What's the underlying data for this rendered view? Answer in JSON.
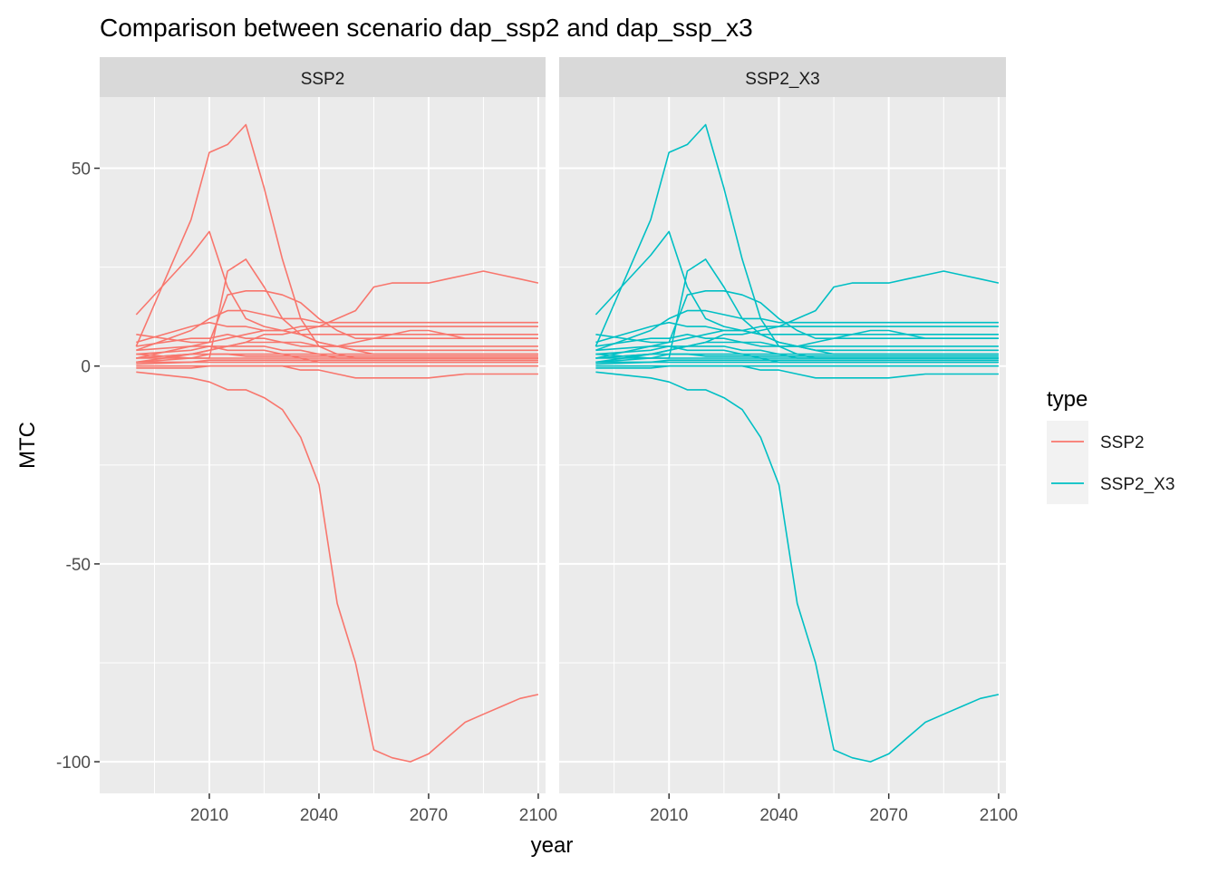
{
  "chart_data": {
    "type": "line",
    "title": "Comparison between scenario dap_ssp2 and dap_ssp_x3",
    "xlabel": "year",
    "ylabel": "MTC",
    "xlim": [
      1980,
      2102
    ],
    "ylim": [
      -108,
      68
    ],
    "x_ticks": [
      2010,
      2040,
      2070,
      2100
    ],
    "x_tick_labels": [
      "2010",
      "2040",
      "2070",
      "2100"
    ],
    "y_ticks": [
      -100,
      -50,
      0,
      50
    ],
    "y_tick_labels": [
      "-100",
      "-50",
      "0",
      "50"
    ],
    "grid": true,
    "legend": {
      "title": "type",
      "position": "right",
      "entries": [
        {
          "label": "SSP2",
          "color": "#F8766D"
        },
        {
          "label": "SSP2_X3",
          "color": "#00BFC4"
        }
      ]
    },
    "facets": [
      {
        "label": "SSP2",
        "color": "#F8766D"
      },
      {
        "label": "SSP2_X3",
        "color": "#00BFC4"
      }
    ],
    "x": [
      1990,
      2005,
      2010,
      2015,
      2020,
      2025,
      2030,
      2035,
      2040,
      2045,
      2050,
      2055,
      2060,
      2065,
      2070,
      2075,
      2080,
      2085,
      2090,
      2095,
      2100
    ],
    "series": [
      {
        "values": [
          -1.5,
          -3,
          -4,
          -6,
          -6,
          -8,
          -11,
          -18,
          -30,
          -60,
          -75,
          -97,
          -99,
          -100,
          -98,
          -94,
          -90,
          -88,
          -86,
          -84,
          -83
        ]
      },
      {
        "values": [
          5,
          37,
          54,
          56,
          61,
          45,
          27,
          12,
          5,
          3,
          2,
          2,
          2,
          2,
          2,
          2,
          2,
          2,
          2,
          2,
          2
        ]
      },
      {
        "values": [
          13,
          28,
          34,
          20,
          12,
          10,
          9,
          8,
          6,
          5,
          4,
          4,
          4,
          4,
          4,
          4,
          4,
          4,
          4,
          4,
          4
        ]
      },
      {
        "values": [
          3,
          2,
          2,
          24,
          27,
          20,
          12,
          8,
          6,
          5,
          4,
          3,
          3,
          3,
          3,
          3,
          3,
          3,
          3,
          3,
          3
        ]
      },
      {
        "values": [
          8,
          6,
          6,
          18,
          19,
          19,
          18,
          16,
          12,
          9,
          7,
          7,
          7,
          7,
          7,
          7,
          7,
          7,
          7,
          7,
          7
        ]
      },
      {
        "values": [
          2,
          3,
          4,
          5,
          6,
          8,
          8,
          9,
          10,
          12,
          14,
          20,
          21,
          21,
          21,
          22,
          23,
          24,
          23,
          22,
          21
        ]
      },
      {
        "values": [
          4,
          9,
          12,
          14,
          14,
          13,
          12,
          12,
          11,
          11,
          11,
          11,
          11,
          11,
          11,
          11,
          11,
          11,
          11,
          11,
          11
        ]
      },
      {
        "values": [
          6,
          10,
          11,
          10,
          10,
          9,
          9,
          8,
          8,
          8,
          8,
          8,
          8,
          8,
          8,
          8,
          8,
          8,
          8,
          8,
          8
        ]
      },
      {
        "values": [
          2,
          5,
          6,
          7,
          8,
          9,
          9,
          10,
          10,
          10,
          10,
          10,
          10,
          10,
          10,
          10,
          10,
          10,
          10,
          10,
          10
        ]
      },
      {
        "values": [
          5,
          7,
          7,
          8,
          7,
          7,
          6,
          6,
          5,
          5,
          6,
          7,
          8,
          9,
          9,
          8,
          7,
          7,
          7,
          7,
          7
        ]
      },
      {
        "values": [
          3,
          4,
          5,
          5,
          6,
          6,
          6,
          5,
          5,
          5,
          5,
          5,
          5,
          5,
          5,
          5,
          5,
          5,
          5,
          5,
          5
        ]
      },
      {
        "values": [
          1,
          3,
          4,
          5,
          5,
          5,
          4,
          4,
          3,
          3,
          3,
          3,
          3,
          3,
          3,
          3,
          3,
          3,
          3,
          3,
          3
        ]
      },
      {
        "values": [
          4,
          5,
          5,
          4,
          4,
          4,
          3,
          3,
          3,
          2,
          2,
          2,
          2,
          2,
          2,
          2,
          2,
          2,
          2,
          2,
          2
        ]
      },
      {
        "values": [
          2,
          2,
          3,
          3,
          3,
          3,
          3,
          2,
          2,
          2,
          2,
          2,
          2,
          2,
          2,
          2,
          2,
          2,
          2,
          2,
          2
        ]
      },
      {
        "values": [
          1,
          2,
          2,
          2,
          2,
          2,
          2,
          2,
          1,
          1,
          1,
          1,
          1,
          1,
          1,
          1,
          1,
          1,
          1,
          1,
          1
        ]
      },
      {
        "values": [
          0.5,
          1,
          1,
          1,
          1,
          1,
          1,
          1,
          1,
          1,
          1,
          1,
          1,
          1,
          1,
          1,
          1,
          1,
          1,
          1,
          1
        ]
      },
      {
        "values": [
          0,
          0,
          0,
          0,
          0,
          0,
          0,
          0,
          0,
          0,
          0,
          0,
          0,
          0,
          0,
          0,
          0,
          0,
          0,
          0,
          0
        ]
      },
      {
        "values": [
          -0.5,
          -0.5,
          0,
          0,
          0,
          0,
          0,
          -1,
          -1,
          -2,
          -3,
          -3,
          -3,
          -3,
          -3,
          -2.5,
          -2,
          -2,
          -2,
          -2,
          -2
        ]
      },
      {
        "values": [
          1,
          1,
          1.5,
          1.5,
          1.5,
          1.5,
          1.5,
          1.5,
          1.5,
          1.5,
          1.5,
          1.5,
          1.5,
          1.5,
          1.5,
          1.5,
          1.5,
          1.5,
          1.5,
          1.5,
          1.5
        ]
      },
      {
        "values": [
          2,
          3,
          3,
          3,
          2.5,
          2.5,
          2.5,
          2.5,
          2.5,
          2.5,
          2.5,
          2.5,
          2.5,
          2.5,
          2.5,
          2.5,
          2.5,
          2.5,
          2.5,
          2.5,
          2.5
        ]
      }
    ]
  }
}
